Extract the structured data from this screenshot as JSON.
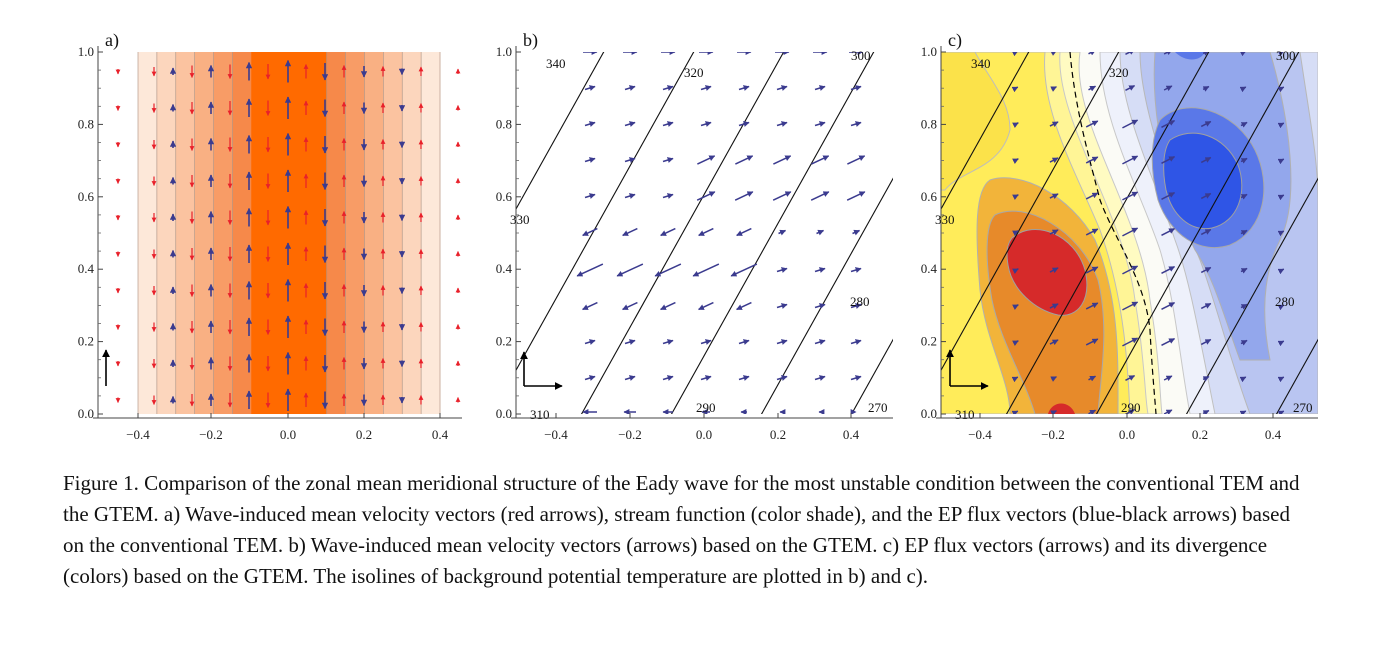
{
  "panels": [
    {
      "letter": "a)",
      "y_ticks": [
        "0.0",
        "0.2",
        "0.4",
        "0.6",
        "0.8",
        "1.0"
      ],
      "x_ticks": [
        "−0.4",
        "−0.2",
        "0.0",
        "0.2",
        "0.4"
      ]
    },
    {
      "letter": "b)",
      "y_ticks": [
        "0.0",
        "0.2",
        "0.4",
        "0.6",
        "0.8",
        "1.0"
      ],
      "x_ticks": [
        "−0.4",
        "−0.2",
        "0.0",
        "0.2",
        "0.4"
      ],
      "isoline_labels": [
        "340",
        "320",
        "300",
        "330",
        "280",
        "310",
        "290",
        "270"
      ]
    },
    {
      "letter": "c)",
      "y_ticks": [
        "0.0",
        "0.2",
        "0.4",
        "0.6",
        "0.8",
        "1.0"
      ],
      "x_ticks": [
        "−0.4",
        "−0.2",
        "0.0",
        "0.2",
        "0.4"
      ],
      "isoline_labels": [
        "340",
        "320",
        "300",
        "330",
        "280",
        "310",
        "290",
        "270"
      ]
    }
  ],
  "caption": "Figure 1. Comparison of the zonal mean meridional structure of the Eady wave for the most unstable condition between the conventional TEM and the GTEM. a) Wave-induced mean velocity vectors (red arrows), stream function (color shade), and the EP flux vectors (blue-black arrows) based on the conventional TEM. b) Wave-induced mean velocity vectors (arrows) based on the GTEM. c) EP flux vectors (arrows) and its divergence (colors) based on the GTEM. The isolines of background potential temperature are plotted in b) and c).",
  "colors": {
    "red_arrow": "#e8202a",
    "blue_arrow": "#3b3b8f",
    "orange_core": "#ff6a00",
    "warm_red": "#d62a2a",
    "cool_blue": "#2f55e6",
    "yellow": "#fff07a"
  }
}
